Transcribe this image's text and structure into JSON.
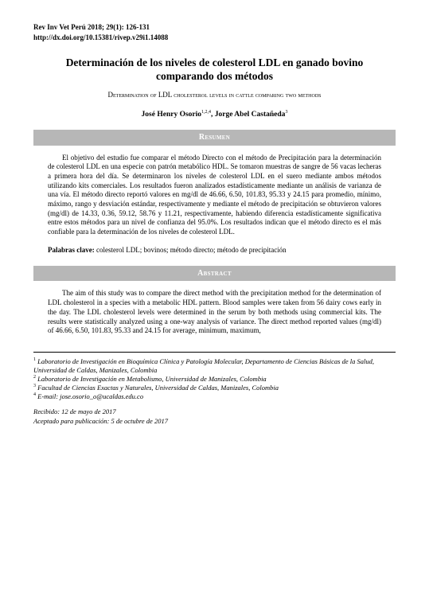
{
  "journal_ref": "Rev Inv Vet Perú 2018; 29(1): 126-131",
  "doi": "http://dx.doi.org/10.15381/rivep.v29i1.14088",
  "title_es": "Determinación de los niveles de colesterol LDL en ganado bovino comparando dos métodos",
  "title_en": "Determination of LDL cholesterol levels in cattle comparing two methods",
  "authors_html": "José Henry Osorio<sup>1,2,4</sup>, Jorge Abel Castañeda<sup>3</sup>",
  "section_resumen": "Resumen",
  "resumen_body": "El objetivo del estudio fue comparar el método Directo con el método de Precipitación para la determinación de colesterol LDL en una especie con patrón metabólico HDL. Se tomaron muestras de sangre de 56 vacas lecheras a primera hora del día. Se determinaron los niveles de colesterol LDL en el suero mediante ambos métodos utilizando kits comerciales. Los resultados fueron analizados estadísticamente mediante un análisis de varianza de una vía. El método directo reportó valores en mg/dl de 46.66, 6.50, 101.83, 95.33 y 24.15 para promedio, mínimo, máximo, rango y desviación estándar, respectivamente y mediante el método de precipitación se obtuvieron valores (mg/dl) de 14.33, 0.36, 59.12, 58.76 y 11.21, respectivamente, habiendo diferencia estadísticamente significativa entre estos métodos para un nivel de confianza del 95.0%. Los resultados indican que el método directo es el más confiable para la determinación de los niveles de colesterol LDL.",
  "keywords_label": "Palabras clave:",
  "keywords_text": " colesterol LDL; bovinos; método directo; método de precipitación",
  "section_abstract": "Abstract",
  "abstract_body": "The aim of this study was to compare the direct method with the precipitation method for the determination of LDL cholesterol in a species with a metabolic HDL pattern. Blood samples were taken from 56 dairy cows early in the day. The LDL cholesterol levels were determined in the serum by both methods using commercial kits. The results were statistically analyzed using a one-way analysis of variance. The direct method reported values (mg/dl) of 46.66, 6.50, 101.83, 95.33 and 24.15 for average, minimum, maximum,",
  "aff1": " Laboratorio de Investigación en Bioquímica Clínica y Patología Molecular, Departamento de Ciencias Básicas de la Salud, Universidad de Caldas, Manizales, Colombia",
  "aff2": " Laboratorio de Investigación en Metabolismo, Universidad de Manizales, Colombia",
  "aff3": " Facultad de Ciencias Exactas y Naturales, Universidad de Caldas, Manizales, Colombia",
  "aff4": " E-mail: jose.osorio_o@ucaldas.edu.co",
  "received": "Recibido: 12 de mayo de 2017",
  "accepted": "Aceptado para publicación: 5 de octubre de 2017",
  "colors": {
    "bar_bg": "#b7b7b7",
    "bar_text": "#ffffff",
    "text": "#000000",
    "bg": "#ffffff"
  }
}
